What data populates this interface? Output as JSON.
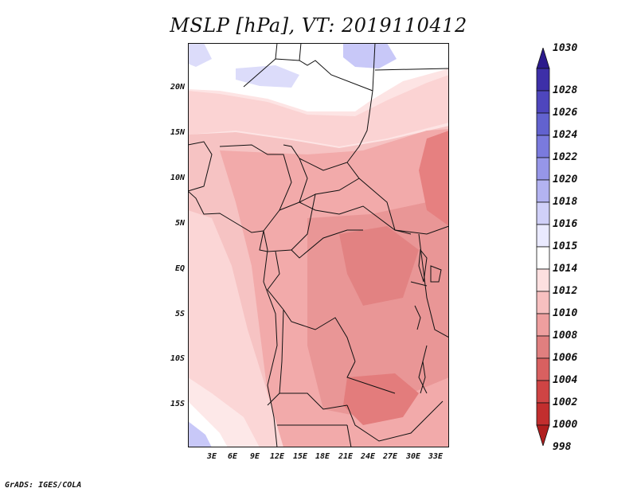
{
  "title": "MSLP [hPa], VT: 2019110412",
  "footer": "GrADS: IGES/COLA",
  "lat_labels": [
    "20N",
    "15N",
    "10N",
    "5N",
    "EQ",
    "5S",
    "10S",
    "15S"
  ],
  "lon_labels": [
    "3E",
    "6E",
    "9E",
    "12E",
    "15E",
    "18E",
    "21E",
    "24E",
    "27E",
    "30E",
    "33E"
  ],
  "colorbar": {
    "levels": [
      "1030",
      "1028",
      "1026",
      "1024",
      "1022",
      "1020",
      "1018",
      "1016",
      "1015",
      "1014",
      "1012",
      "1010",
      "1008",
      "1006",
      "1004",
      "1002",
      "1000",
      "998"
    ],
    "colors": [
      "#2b1a8c",
      "#3d2fa8",
      "#4e46bd",
      "#6262cf",
      "#7a7add",
      "#9696e8",
      "#b3b3f1",
      "#d0d0f8",
      "#eaeaff",
      "#ffffff",
      "#fde0e0",
      "#f7c0c0",
      "#ee9f9f",
      "#e07f7f",
      "#d86060",
      "#cf4444",
      "#c22e2e",
      "#b01e1e"
    ]
  },
  "map_fill": {
    "ocean_south": "#c8c8f8",
    "light": "#fde4e4",
    "mid": "#f6c3c3",
    "mid2": "#f2aaaa",
    "dark": "#e68e8e",
    "darker": "#dd7878",
    "north_white": "#ffffff",
    "north_blue": "#dcdcfa"
  }
}
